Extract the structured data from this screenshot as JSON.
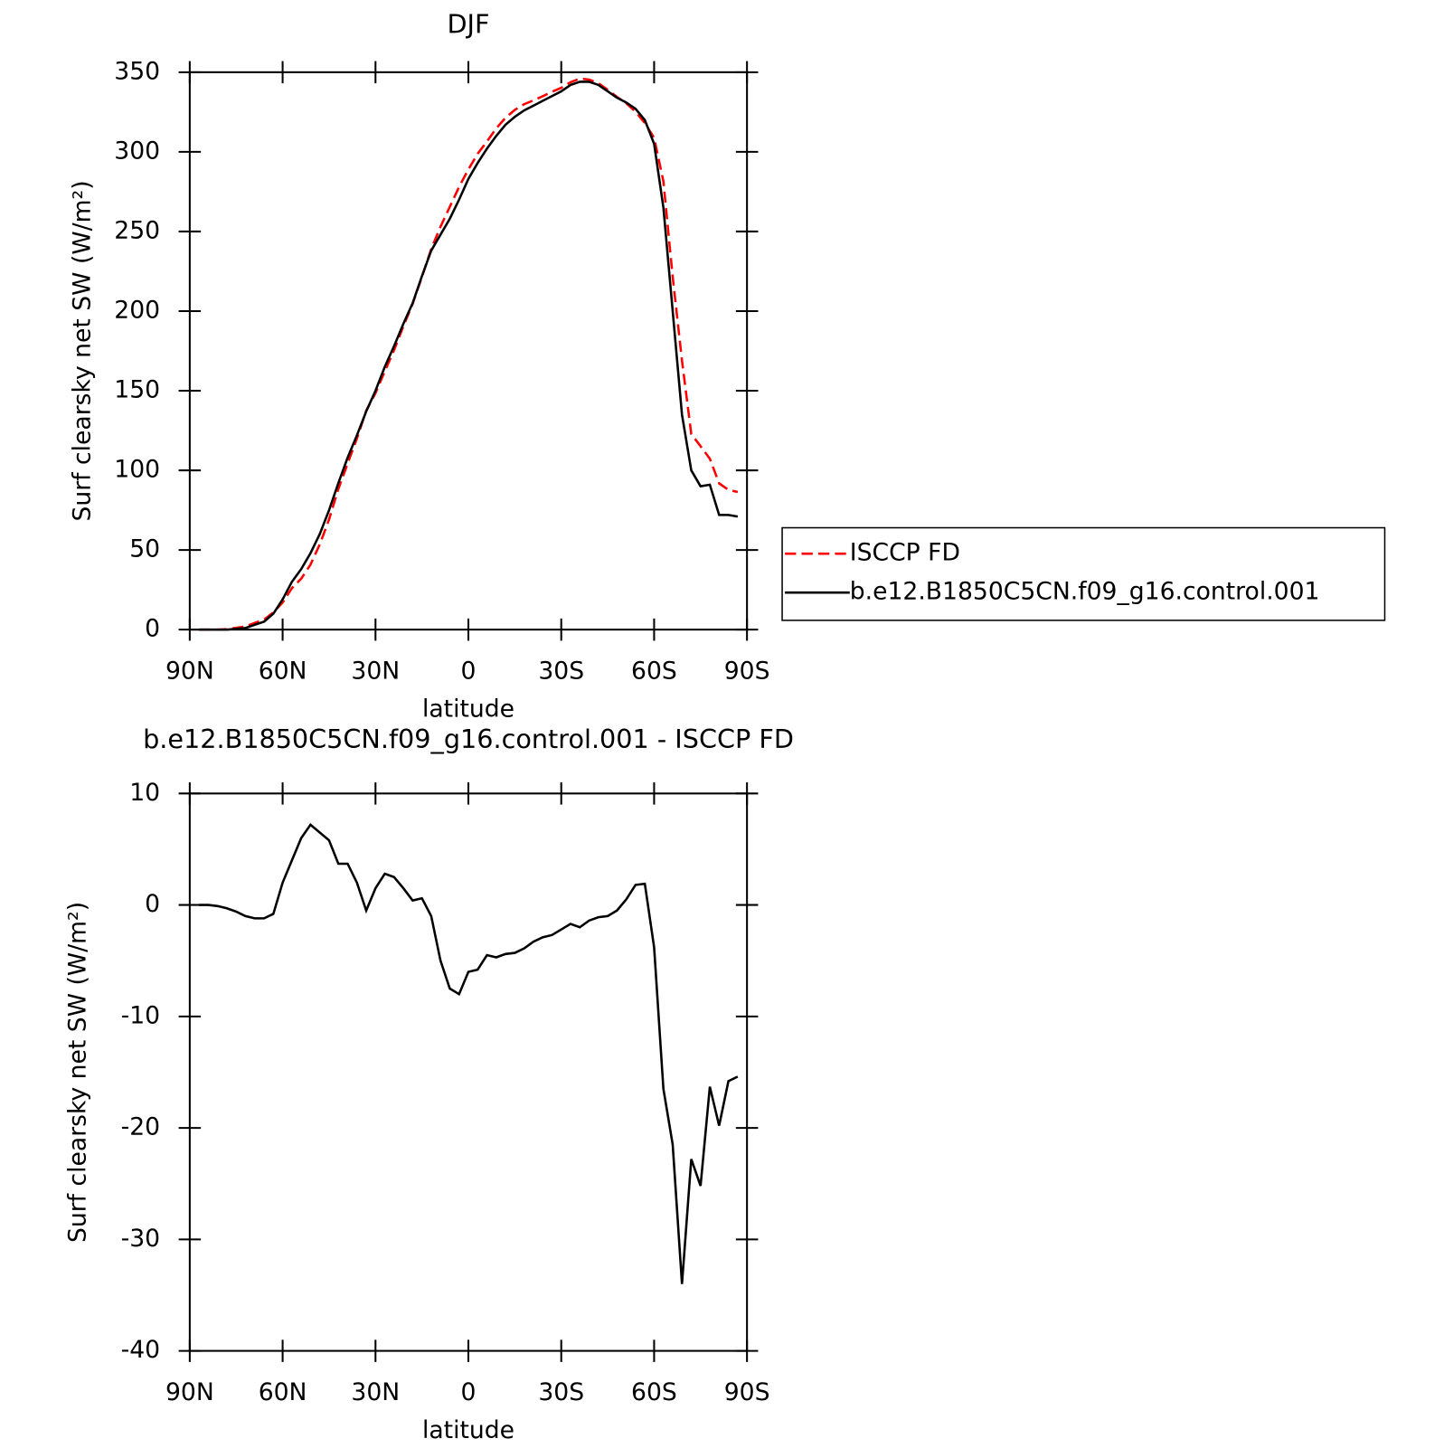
{
  "chart_data": [
    {
      "type": "line",
      "title": "DJF",
      "xlabel": "latitude",
      "ylabel": "Surf clearsky net SW (W/m²)",
      "x": [
        87,
        84,
        81,
        78,
        75,
        72,
        69,
        66,
        63,
        60,
        57,
        54,
        51,
        48,
        45,
        42,
        39,
        36,
        33,
        30,
        27,
        24,
        21,
        18,
        15,
        12,
        9,
        6,
        3,
        0,
        -3,
        -6,
        -9,
        -12,
        -15,
        -18,
        -21,
        -24,
        -27,
        -30,
        -33,
        -36,
        -39,
        -42,
        -45,
        -48,
        -51,
        -54,
        -57,
        -60,
        -63,
        -66,
        -69,
        -72,
        -75,
        -78,
        -81,
        -84,
        -87
      ],
      "xlim": [
        90,
        -90
      ],
      "xticks": [
        {
          "value": 90,
          "label": "90N"
        },
        {
          "value": 60,
          "label": "60N"
        },
        {
          "value": 30,
          "label": "30N"
        },
        0,
        {
          "value": -30,
          "label": "30S"
        },
        {
          "value": -60,
          "label": "60S"
        },
        {
          "value": -90,
          "label": "90S"
        }
      ],
      "ylim": [
        0,
        350
      ],
      "yticks": [
        0,
        50,
        100,
        150,
        200,
        250,
        300,
        350
      ],
      "legend": "right",
      "series": [
        {
          "name": "ISCCP FD",
          "color": "#ff0000",
          "linestyle": "dashed",
          "values": [
            0,
            0,
            0,
            0.3,
            1.1,
            2,
            4.2,
            6.2,
            10.8,
            17,
            26,
            32,
            40.8,
            53.5,
            69.2,
            88.3,
            104.3,
            120,
            137.5,
            148.5,
            162.2,
            175.5,
            190.5,
            204.6,
            221.4,
            239,
            253,
            265.5,
            278,
            289,
            298.8,
            306.5,
            314.7,
            321.4,
            326.3,
            329.9,
            332.3,
            334.9,
            337.7,
            340.2,
            343.7,
            346,
            345.4,
            343.1,
            339,
            334.5,
            330.5,
            325.2,
            318.1,
            308.8,
            281.5,
            221.5,
            169,
            122.8,
            115.2,
            107.3,
            91.8,
            87.8,
            86.4
          ]
        },
        {
          "name": "b.e12.B1850C5CN.f09_g16.control.001",
          "color": "#000000",
          "linestyle": "solid",
          "values": [
            0,
            0,
            0,
            0,
            0.5,
            1,
            3,
            5,
            10,
            19,
            30,
            38,
            48,
            60,
            75,
            92,
            108,
            122,
            137,
            150,
            165,
            178,
            192,
            205,
            222,
            238,
            248,
            258,
            270,
            283,
            293,
            302,
            310,
            317,
            322,
            326,
            329,
            332,
            335,
            338,
            342,
            344,
            344,
            342,
            338,
            334,
            331,
            327,
            320,
            305,
            265,
            200,
            135,
            100,
            90,
            91,
            72,
            72,
            71
          ]
        }
      ]
    },
    {
      "type": "line",
      "title": "b.e12.B1850C5CN.f09_g16.control.001 - ISCCP FD",
      "xlabel": "latitude",
      "ylabel": "Surf clearsky net SW (W/m²)",
      "x": [
        87,
        84,
        81,
        78,
        75,
        72,
        69,
        66,
        63,
        60,
        57,
        54,
        51,
        48,
        45,
        42,
        39,
        36,
        33,
        30,
        27,
        24,
        21,
        18,
        15,
        12,
        9,
        6,
        3,
        0,
        -3,
        -6,
        -9,
        -12,
        -15,
        -18,
        -21,
        -24,
        -27,
        -30,
        -33,
        -36,
        -39,
        -42,
        -45,
        -48,
        -51,
        -54,
        -57,
        -60,
        -63,
        -66,
        -69,
        -72,
        -75,
        -78,
        -81,
        -84,
        -87
      ],
      "xlim": [
        90,
        -90
      ],
      "xticks": [
        {
          "value": 90,
          "label": "90N"
        },
        {
          "value": 60,
          "label": "60N"
        },
        {
          "value": 30,
          "label": "30N"
        },
        0,
        {
          "value": -30,
          "label": "30S"
        },
        {
          "value": -60,
          "label": "60S"
        },
        {
          "value": -90,
          "label": "90S"
        }
      ],
      "ylim": [
        -40,
        10
      ],
      "yticks": [
        -40,
        -30,
        -20,
        -10,
        0,
        10
      ],
      "series": [
        {
          "color": "#000000",
          "linestyle": "solid",
          "values": [
            0,
            0,
            -0.1,
            -0.3,
            -0.6,
            -1,
            -1.2,
            -1.2,
            -0.8,
            2,
            4,
            6,
            7.2,
            6.5,
            5.8,
            3.7,
            3.7,
            2,
            -0.5,
            1.5,
            2.8,
            2.5,
            1.5,
            0.4,
            0.6,
            -1,
            -5,
            -7.5,
            -8,
            -6,
            -5.8,
            -4.5,
            -4.7,
            -4.4,
            -4.3,
            -3.9,
            -3.3,
            -2.9,
            -2.7,
            -2.2,
            -1.7,
            -2,
            -1.4,
            -1.1,
            -1,
            -0.5,
            0.5,
            1.8,
            1.9,
            -3.8,
            -16.5,
            -21.5,
            -34,
            -22.8,
            -25.2,
            -16.3,
            -19.8,
            -15.8,
            -15.4
          ]
        }
      ]
    }
  ]
}
